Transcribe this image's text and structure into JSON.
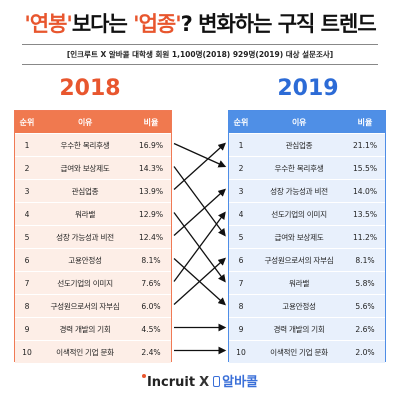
{
  "title": {
    "part1": "'연봉'",
    "part2": "보다는 ",
    "part3": "'업종'",
    "part4": "? 변화하는 구직 트렌드"
  },
  "subtitle": "[인크루트 X 알바콜 대학생 회원 1,100명(2018) 929명(2019) 대상 설문조사]",
  "years": {
    "left": "2018",
    "right": "2019"
  },
  "columns": {
    "rank": "순위",
    "item": "이유",
    "value": "비율"
  },
  "table_2018": [
    {
      "rank": "1",
      "item": "우수한 복리후생",
      "value": "16.9%"
    },
    {
      "rank": "2",
      "item": "급여와 보상제도",
      "value": "14.3%"
    },
    {
      "rank": "3",
      "item": "관심업종",
      "value": "13.9%"
    },
    {
      "rank": "4",
      "item": "워라밸",
      "value": "12.9%"
    },
    {
      "rank": "5",
      "item": "성장 가능성과 비전",
      "value": "12.4%"
    },
    {
      "rank": "6",
      "item": "고용안정성",
      "value": "8.1%"
    },
    {
      "rank": "7",
      "item": "선도기업의 이미지",
      "value": "7.6%"
    },
    {
      "rank": "8",
      "item": "구성원으로서의 자부심",
      "value": "6.0%"
    },
    {
      "rank": "9",
      "item": "경력 개발의 기회",
      "value": "4.5%"
    },
    {
      "rank": "10",
      "item": "이색적인 기업 문화",
      "value": "2.4%"
    }
  ],
  "table_2019": [
    {
      "rank": "1",
      "item": "관심업종",
      "value": "21.1%"
    },
    {
      "rank": "2",
      "item": "우수한 복리후생",
      "value": "15.5%"
    },
    {
      "rank": "3",
      "item": "성장 가능성과 비전",
      "value": "14.0%"
    },
    {
      "rank": "4",
      "item": "선도기업의 이미지",
      "value": "13.5%"
    },
    {
      "rank": "5",
      "item": "급여와 보상제도",
      "value": "11.2%"
    },
    {
      "rank": "6",
      "item": "구성원으로서의 자부심",
      "value": "8.1%"
    },
    {
      "rank": "7",
      "item": "워라밸",
      "value": "5.8%"
    },
    {
      "rank": "8",
      "item": "고용안정성",
      "value": "5.6%"
    },
    {
      "rank": "9",
      "item": "경력 개발의 기회",
      "value": "2.6%"
    },
    {
      "rank": "10",
      "item": "이색적인 기업 문화",
      "value": "2.0%"
    }
  ],
  "rank_links": [
    {
      "from": 1,
      "to": 2
    },
    {
      "from": 2,
      "to": 5
    },
    {
      "from": 3,
      "to": 1
    },
    {
      "from": 4,
      "to": 7
    },
    {
      "from": 5,
      "to": 3
    },
    {
      "from": 6,
      "to": 8
    },
    {
      "from": 7,
      "to": 4
    },
    {
      "from": 8,
      "to": 6
    },
    {
      "from": 9,
      "to": 9
    },
    {
      "from": 10,
      "to": 10
    }
  ],
  "footer": {
    "brand1": "Incruit",
    "separator": "X",
    "brand2": "알바콜"
  },
  "colors": {
    "accent_2018": "#e8562e",
    "accent_2019": "#2c6bd6"
  }
}
